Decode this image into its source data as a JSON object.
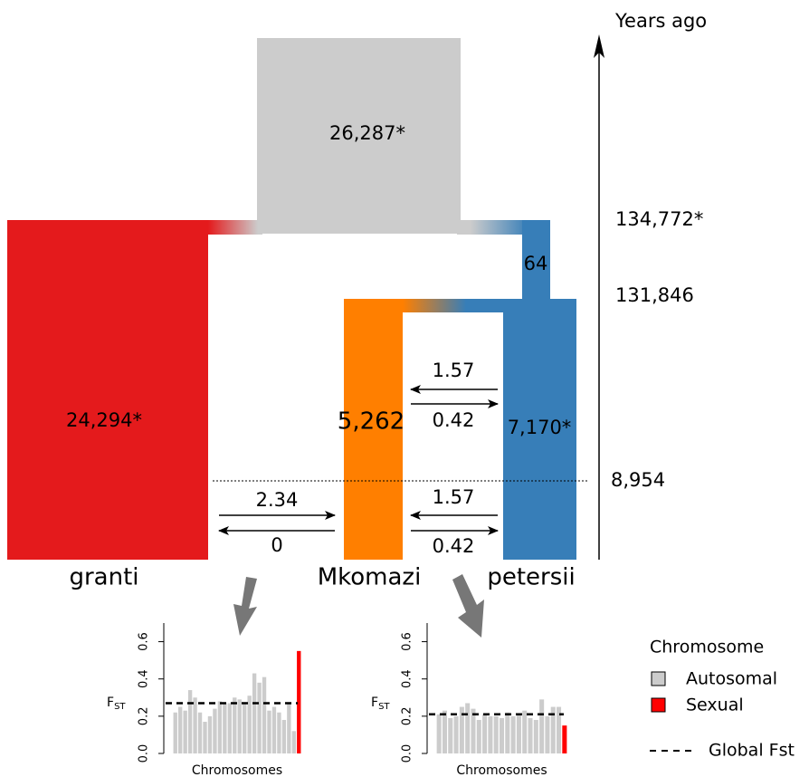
{
  "diagram": {
    "time_axis": {
      "label": "Years ago",
      "times": [
        "134,772*",
        "131,846",
        "8,954"
      ]
    },
    "populations": {
      "ancestral": "26,287*",
      "granti": "24,294*",
      "mkomazi": "5,262",
      "petersii": "7,170*",
      "petersii_ancestral": "64"
    },
    "population_names": [
      "granti",
      "Mkomazi",
      "petersii"
    ],
    "migration": {
      "upper": [
        "1.57",
        "0.42"
      ],
      "lower_left": [
        "2.34",
        "0"
      ],
      "lower_right": [
        "1.57",
        "0.42"
      ]
    },
    "legend": {
      "title": "Chromosome",
      "items": [
        {
          "label": "Autosomal",
          "color": "#cccccc"
        },
        {
          "label": "Sexual",
          "color": "#ff0000"
        }
      ],
      "line_label": "Global Fst"
    }
  },
  "chart_data": [
    {
      "type": "bar",
      "ylabel": {
        "main": "F",
        "sub": "ST"
      },
      "xlabel": "Chromosomes",
      "categories": [
        null,
        null,
        null,
        null,
        null,
        null,
        null,
        null,
        null,
        null,
        null,
        null,
        null,
        null,
        null,
        null,
        null,
        null,
        null,
        null,
        null,
        null,
        null,
        null,
        null,
        null
      ],
      "series": [
        {
          "color": "#cccccc",
          "values": [
            0.22,
            0.25,
            0.23,
            0.34,
            0.3,
            0.22,
            0.17,
            0.2,
            0.24,
            0.28,
            0.27,
            0.27,
            0.3,
            0.29,
            0.27,
            0.31,
            0.43,
            0.38,
            0.41,
            0.23,
            0.25,
            0.22,
            0.18,
            0.27,
            0.12,
            null
          ]
        },
        {
          "color": "#ff0000",
          "values": [
            null,
            null,
            null,
            null,
            null,
            null,
            null,
            null,
            null,
            null,
            null,
            null,
            null,
            null,
            null,
            null,
            null,
            null,
            null,
            null,
            null,
            null,
            null,
            null,
            null,
            0.55
          ]
        }
      ],
      "global_fst": 0.27,
      "ylim": [
        0,
        0.7
      ],
      "yticks": [
        {
          "value": 0,
          "label": "0.0"
        },
        0.2,
        0.4,
        0.6
      ]
    },
    {
      "type": "bar",
      "ylabel": {
        "main": "F",
        "sub": "ST"
      },
      "xlabel": "Chromosomes",
      "categories": [
        null,
        null,
        null,
        null,
        null,
        null,
        null,
        null,
        null,
        null,
        null,
        null,
        null,
        null,
        null,
        null,
        null,
        null,
        null,
        null,
        null,
        null,
        null
      ],
      "series": [
        {
          "color": "#cccccc",
          "values": [
            0.21,
            0.23,
            0.19,
            0.2,
            0.25,
            0.27,
            0.24,
            0.18,
            0.21,
            0.2,
            0.2,
            0.19,
            0.22,
            0.2,
            0.21,
            0.23,
            0.19,
            0.18,
            0.29,
            0.2,
            0.25,
            0.25,
            null
          ]
        },
        {
          "color": "#ff0000",
          "values": [
            null,
            null,
            null,
            null,
            null,
            null,
            null,
            null,
            null,
            null,
            null,
            null,
            null,
            null,
            null,
            null,
            null,
            null,
            null,
            null,
            null,
            null,
            0.15
          ]
        }
      ],
      "global_fst": 0.21,
      "ylim": [
        0,
        0.7
      ],
      "yticks": [
        {
          "value": 0,
          "label": "0.0"
        },
        0.2,
        0.4,
        0.6
      ]
    }
  ]
}
